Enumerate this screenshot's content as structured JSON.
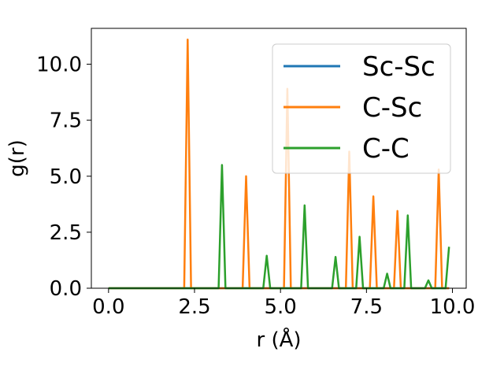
{
  "chart_data": {
    "type": "line",
    "xlabel": "r (Å)",
    "ylabel": "g(r)",
    "xlim": [
      -0.5,
      10.4
    ],
    "ylim": [
      0,
      11.6
    ],
    "x_ticks": [
      0.0,
      2.5,
      5.0,
      7.5,
      10.0
    ],
    "x_tick_labels": [
      "0.0",
      "2.5",
      "5.0",
      "7.5",
      "10.0"
    ],
    "y_ticks": [
      0.0,
      2.5,
      5.0,
      7.5,
      10.0
    ],
    "y_tick_labels": [
      "0.0",
      "2.5",
      "5.0",
      "7.5",
      "10.0"
    ],
    "grid": false,
    "legend_position": "upper right",
    "series": [
      {
        "name": "Sc-Sc",
        "color": "#1f77b4",
        "x": [
          0.0,
          9.9
        ],
        "y": [
          0.0,
          0.0
        ]
      },
      {
        "name": "C-Sc",
        "color": "#ff7f0e",
        "x": [
          0.0,
          2.2,
          2.3,
          2.4,
          3.9,
          4.0,
          4.1,
          5.1,
          5.2,
          5.3,
          6.9,
          7.0,
          7.1,
          7.6,
          7.7,
          7.8,
          8.3,
          8.4,
          8.5,
          9.5,
          9.6,
          9.7,
          9.9
        ],
        "y": [
          0.0,
          0.0,
          11.1,
          0.0,
          0.0,
          5.0,
          0.0,
          0.0,
          8.9,
          0.0,
          0.0,
          6.1,
          0.0,
          0.0,
          4.1,
          0.0,
          0.0,
          3.45,
          0.0,
          0.0,
          5.3,
          0.0,
          0.0
        ]
      },
      {
        "name": "C-C",
        "color": "#2ca02c",
        "x": [
          0.0,
          3.2,
          3.3,
          3.4,
          4.5,
          4.6,
          4.7,
          5.6,
          5.7,
          5.8,
          6.5,
          6.6,
          6.7,
          7.2,
          7.3,
          7.4,
          8.0,
          8.1,
          8.2,
          8.6,
          8.7,
          8.8,
          9.2,
          9.3,
          9.4,
          9.8,
          9.9
        ],
        "y": [
          0.0,
          0.0,
          5.5,
          0.0,
          0.0,
          1.45,
          0.0,
          0.0,
          3.7,
          0.0,
          0.0,
          1.4,
          0.0,
          0.0,
          2.3,
          0.0,
          0.0,
          0.65,
          0.0,
          0.0,
          3.25,
          0.0,
          0.0,
          0.35,
          0.0,
          0.0,
          1.85
        ]
      }
    ]
  }
}
